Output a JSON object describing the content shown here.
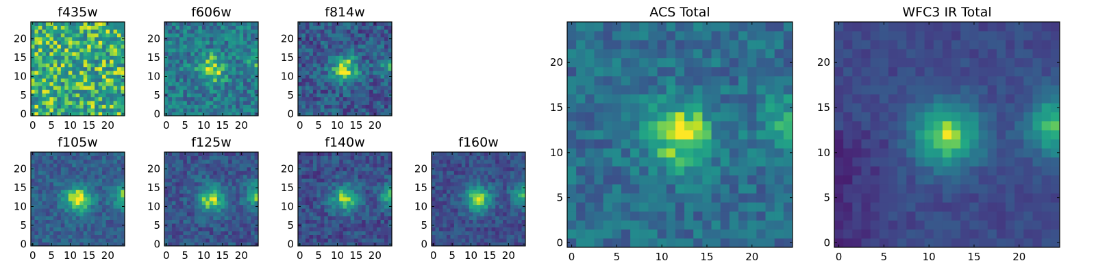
{
  "chart_data": [
    {
      "type": "heatmap",
      "title": "f435w",
      "grid_size": 25,
      "xlim": [
        -0.5,
        24.5
      ],
      "ylim": [
        -0.5,
        24.5
      ],
      "xticks": [
        0,
        5,
        10,
        15,
        20
      ],
      "yticks": [
        0,
        5,
        10,
        15,
        20
      ],
      "colormap": "viridis",
      "peak": [
        12,
        12
      ],
      "source_strength": 0.0,
      "neighbor_strength": 0.0,
      "noise": 0.55,
      "baseline": 0.72
    },
    {
      "type": "heatmap",
      "title": "f606w",
      "grid_size": 25,
      "xlim": [
        -0.5,
        24.5
      ],
      "ylim": [
        -0.5,
        24.5
      ],
      "xticks": [
        0,
        5,
        10,
        15,
        20
      ],
      "yticks": [
        0,
        5,
        10,
        15,
        20
      ],
      "colormap": "viridis",
      "peak": [
        12,
        12
      ],
      "source_strength": 0.45,
      "neighbor_strength": 0.2,
      "noise": 0.42,
      "baseline": 0.5
    },
    {
      "type": "heatmap",
      "title": "f814w",
      "grid_size": 25,
      "xlim": [
        -0.5,
        24.5
      ],
      "ylim": [
        -0.5,
        24.5
      ],
      "xticks": [
        0,
        5,
        10,
        15,
        20
      ],
      "yticks": [
        0,
        5,
        10,
        15,
        20
      ],
      "colormap": "viridis",
      "peak": [
        12,
        12
      ],
      "source_strength": 0.6,
      "neighbor_strength": 0.35,
      "noise": 0.4,
      "baseline": 0.35
    },
    {
      "type": "heatmap",
      "title": "f105w",
      "grid_size": 25,
      "xlim": [
        -0.5,
        24.5
      ],
      "ylim": [
        -0.5,
        24.5
      ],
      "xticks": [
        0,
        5,
        10,
        15,
        20
      ],
      "yticks": [
        0,
        5,
        10,
        15,
        20
      ],
      "colormap": "viridis",
      "peak": [
        12,
        12
      ],
      "source_strength": 0.62,
      "neighbor_strength": 0.45,
      "noise": 0.28,
      "baseline": 0.38
    },
    {
      "type": "heatmap",
      "title": "f125w",
      "grid_size": 25,
      "xlim": [
        -0.5,
        24.5
      ],
      "ylim": [
        -0.5,
        24.5
      ],
      "xticks": [
        0,
        5,
        10,
        15,
        20
      ],
      "yticks": [
        0,
        5,
        10,
        15,
        20
      ],
      "colormap": "viridis",
      "peak": [
        12,
        12
      ],
      "source_strength": 0.6,
      "neighbor_strength": 0.5,
      "noise": 0.3,
      "baseline": 0.33
    },
    {
      "type": "heatmap",
      "title": "f140w",
      "grid_size": 25,
      "xlim": [
        -0.5,
        24.5
      ],
      "ylim": [
        -0.5,
        24.5
      ],
      "xticks": [
        0,
        5,
        10,
        15,
        20
      ],
      "yticks": [
        0,
        5,
        10,
        15,
        20
      ],
      "colormap": "viridis",
      "peak": [
        12,
        12
      ],
      "source_strength": 0.58,
      "neighbor_strength": 0.5,
      "noise": 0.3,
      "baseline": 0.3
    },
    {
      "type": "heatmap",
      "title": "f160w",
      "grid_size": 25,
      "xlim": [
        -0.5,
        24.5
      ],
      "ylim": [
        -0.5,
        24.5
      ],
      "xticks": [
        0,
        5,
        10,
        15,
        20
      ],
      "yticks": [
        0,
        5,
        10,
        15,
        20
      ],
      "colormap": "viridis",
      "peak": [
        12,
        12
      ],
      "source_strength": 0.6,
      "neighbor_strength": 0.55,
      "noise": 0.26,
      "baseline": 0.3
    },
    {
      "type": "heatmap",
      "title": "ACS Total",
      "grid_size": 25,
      "xlim": [
        -0.5,
        24.5
      ],
      "ylim": [
        -0.5,
        24.5
      ],
      "xticks": [
        0,
        5,
        10,
        15,
        20
      ],
      "yticks": [
        0,
        5,
        10,
        15,
        20
      ],
      "colormap": "viridis",
      "peak": [
        12,
        12
      ],
      "source_strength": 0.55,
      "neighbor_strength": 0.35,
      "noise": 0.3,
      "baseline": 0.45
    },
    {
      "type": "heatmap",
      "title": "WFC3 IR Total",
      "grid_size": 25,
      "xlim": [
        -0.5,
        24.5
      ],
      "ylim": [
        -0.5,
        24.5
      ],
      "xticks": [
        0,
        5,
        10,
        15,
        20
      ],
      "yticks": [
        0,
        5,
        10,
        15,
        20
      ],
      "colormap": "viridis",
      "peak": [
        12,
        12
      ],
      "source_strength": 0.65,
      "neighbor_strength": 0.6,
      "noise": 0.14,
      "baseline": 0.28
    }
  ]
}
